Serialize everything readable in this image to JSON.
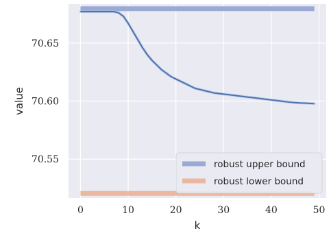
{
  "chart_data": {
    "type": "line",
    "xlabel": "k",
    "ylabel": "value",
    "xlim": [
      -2.5,
      51.5
    ],
    "ylim": [
      70.5165,
      70.6835
    ],
    "xticks": [
      0,
      10,
      20,
      30,
      40,
      50
    ],
    "yticks": [
      70.55,
      70.6,
      70.65
    ],
    "ytick_labels": [
      "70.55",
      "70.60",
      "70.65"
    ],
    "grid": true,
    "background": "#eaeaf2",
    "legend": {
      "placement": "lower-right"
    },
    "series": [
      {
        "name": "robust upper bound",
        "color": "#9aaad4",
        "x": [
          0,
          49
        ],
        "y": [
          70.6795,
          70.6795
        ]
      },
      {
        "name": "robust lower bound",
        "color": "#e9b89e",
        "x": [
          0,
          49
        ],
        "y": [
          70.5205,
          70.5205
        ]
      },
      {
        "name": "",
        "color": "#4c72b0",
        "x": [
          0,
          1,
          2,
          3,
          4,
          5,
          6,
          7,
          8,
          9,
          10,
          11,
          12,
          13,
          14,
          15,
          16,
          17,
          18,
          19,
          20,
          21,
          22,
          23,
          24,
          25,
          26,
          27,
          28,
          29,
          30,
          31,
          32,
          33,
          34,
          35,
          36,
          37,
          38,
          39,
          40,
          41,
          42,
          43,
          44,
          45,
          46,
          47,
          48,
          49
        ],
        "y": [
          70.677,
          70.677,
          70.677,
          70.677,
          70.677,
          70.677,
          70.677,
          70.677,
          70.676,
          70.673,
          70.667,
          70.66,
          70.653,
          70.646,
          70.64,
          70.635,
          70.631,
          70.627,
          70.624,
          70.621,
          70.619,
          70.617,
          70.615,
          70.613,
          70.611,
          70.61,
          70.609,
          70.608,
          70.607,
          70.6065,
          70.606,
          70.6055,
          70.605,
          70.6045,
          70.604,
          70.6035,
          70.603,
          70.6025,
          70.602,
          70.6015,
          70.601,
          70.6005,
          70.6,
          70.5995,
          70.599,
          70.5987,
          70.5984,
          70.5982,
          70.598,
          70.5978
        ]
      }
    ]
  }
}
